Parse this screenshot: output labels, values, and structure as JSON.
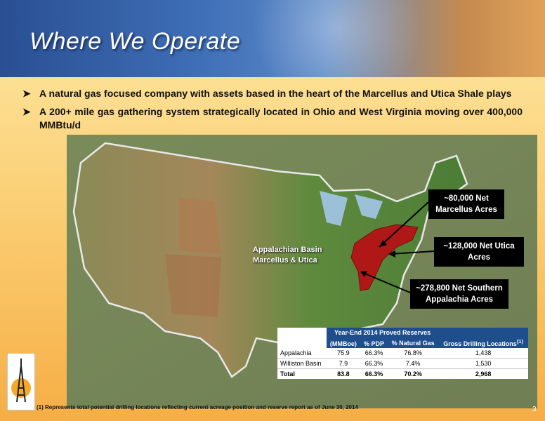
{
  "header": {
    "title": "Where We Operate"
  },
  "bullets": [
    "A natural gas focused company with assets based in the heart of the Marcellus and Utica Shale plays",
    "A 200+ mile gas gathering system strategically located in Ohio and West Virginia moving over 400,000 MMBtu/d"
  ],
  "map": {
    "basin_label": "Appalachian Basin Marcellus & Utica",
    "callouts": [
      "~80,000 Net Marcellus Acres",
      "~128,000 Net Utica Acres",
      "~278,800 Net Southern Appalachia Acres"
    ]
  },
  "table": {
    "caption": "Year-End 2014 Proved Reserves",
    "columns": [
      "(MMBoe)",
      "% PDP",
      "% Natural Gas",
      "Gross Drilling Locations"
    ],
    "columns_note": "(1)",
    "rows": [
      [
        "Appalachia",
        "75.9",
        "66.3%",
        "76.8%",
        "1,438"
      ],
      [
        "Williston Basin",
        "7.9",
        "66.3%",
        "7.4%",
        "1,530"
      ],
      [
        "Total",
        "83.8",
        "66.3%",
        "70.2%",
        "2,968"
      ]
    ]
  },
  "footnote": "(1) Represents total potential drilling locations reflecting current acreage position and reserve report as of June 30, 2014",
  "page_number": "3"
}
